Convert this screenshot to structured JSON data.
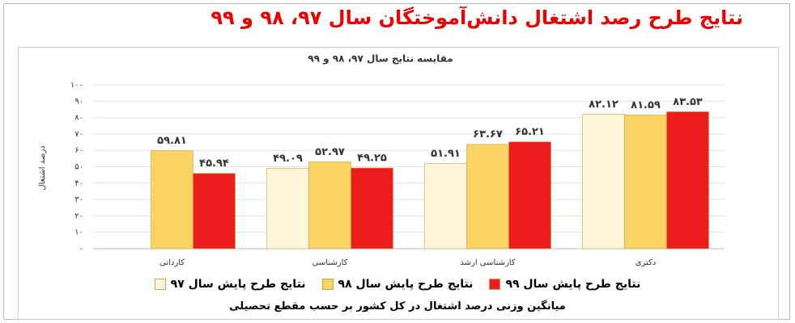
{
  "chart_data": {
    "type": "bar",
    "page_title": "نتایج طرح رصد اشتغال دانش‌آموختگان سال ۹۷، ۹۸ و ۹۹",
    "title": "مقایسه نتایج سال ۹۷، ۹۸ و ۹۹",
    "y_label": "درصد اشتغال",
    "caption": "میانگین وزنی درصد اشتغال در کل کشور بر حسب مقطع تحصیلی",
    "categories": [
      "کاردانی",
      "کارشناسی",
      "کارشناسی ارشد",
      "دکتری"
    ],
    "series": [
      {
        "name": "نتایج طرح پایش سال ۹۷",
        "color": "#fff5d9",
        "values": [
          null,
          49.09,
          51.91,
          82.12
        ],
        "value_labels": [
          null,
          "۴۹.۰۹",
          "۵۱.۹۱",
          "۸۲.۱۲"
        ]
      },
      {
        "name": "نتایج طرح پایش سال ۹۸",
        "color": "#f9d463",
        "values": [
          59.81,
          52.97,
          63.67,
          81.59
        ],
        "value_labels": [
          "۵۹.۸۱",
          "۵۲.۹۷",
          "۶۳.۶۷",
          "۸۱.۵۹"
        ]
      },
      {
        "name": "نتایج طرح پایش سال ۹۹",
        "color": "#ee1d1d",
        "values": [
          45.94,
          49.25,
          65.21,
          83.53
        ],
        "value_labels": [
          "۴۵.۹۴",
          "۴۹.۲۵",
          "۶۵.۲۱",
          "۸۳.۵۳"
        ]
      }
    ],
    "ylim": [
      0,
      100
    ],
    "yticks": [
      {
        "value": 0,
        "label": "۰"
      },
      {
        "value": 10,
        "label": "۱۰"
      },
      {
        "value": 20,
        "label": "۲۰"
      },
      {
        "value": 30,
        "label": "۳۰"
      },
      {
        "value": 40,
        "label": "۴۰"
      },
      {
        "value": 50,
        "label": "۵۰"
      },
      {
        "value": 60,
        "label": "۶۰"
      },
      {
        "value": 70,
        "label": "۷۰"
      },
      {
        "value": 80,
        "label": "۸۰"
      },
      {
        "value": 90,
        "label": "۹۰"
      },
      {
        "value": 100,
        "label": "۱۰۰"
      }
    ],
    "grid": true
  }
}
